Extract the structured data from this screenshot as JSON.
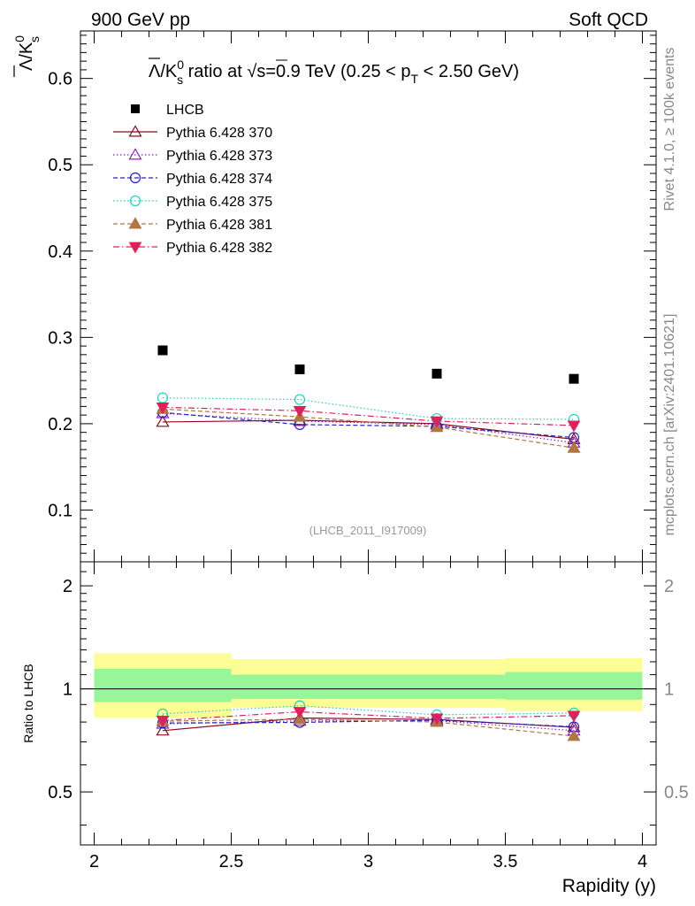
{
  "header": {
    "left": "900 GeV pp",
    "right": "Soft QCD"
  },
  "side_labels": {
    "rivet": "Rivet 4.1.0, ≥ 100k events",
    "mcplots": "mcplots.cern.ch [arXiv:2401.10621]"
  },
  "watermark": "(LHCB_2011_I917009)",
  "chart_data": [
    {
      "type": "scatter",
      "title": "Λ̄/K⁰s ratio at √s=0.9 TeV (0.25 < pT < 2.50 GeV)",
      "title_parts": {
        "ratio_label": "/K",
        "kaon_sup": "0",
        "kaon_sub": "s",
        "mid": " ratio at ",
        "sqrt_label": "s=0.9 TeV (0.25 < p",
        "pt_sub": "T",
        "tail": " < 2.50 GeV)"
      },
      "ylabel": "Λ̄/K⁰s",
      "ylabel_parts": {
        "slash_k": "/K",
        "sup": "0",
        "sub": "s"
      },
      "xlabel": "Rapidity (y)",
      "xlim": [
        1.95,
        4.05
      ],
      "ylim": [
        0.04,
        0.655
      ],
      "yticks": [
        0.1,
        0.2,
        0.3,
        0.4,
        0.5,
        0.6
      ],
      "ytick_labels": [
        "0.1",
        "0.2",
        "0.3",
        "0.4",
        "0.5",
        "0.6"
      ],
      "x": [
        2.25,
        2.75,
        3.25,
        3.75
      ],
      "legend_position": "top-left",
      "series": [
        {
          "name": "LHCB",
          "marker": "square",
          "color": "#000000",
          "values": [
            0.285,
            0.263,
            0.258,
            0.252
          ]
        },
        {
          "name": "Pythia 6.428 370",
          "marker": "triangle-open",
          "line": "solid",
          "color": "#8b0a1e",
          "values": [
            0.202,
            0.204,
            0.2,
            0.182
          ]
        },
        {
          "name": "Pythia 6.428 373",
          "marker": "triangle-open",
          "line": "dotted",
          "color": "#8b1fc8",
          "values": [
            0.212,
            0.203,
            0.199,
            0.178
          ]
        },
        {
          "name": "Pythia 6.428 374",
          "marker": "circle-open",
          "line": "dashed",
          "color": "#2020d0",
          "values": [
            0.213,
            0.199,
            0.197,
            0.184
          ]
        },
        {
          "name": "Pythia 6.428 375",
          "marker": "circle-open",
          "line": "dotted",
          "color": "#1ed2c0",
          "values": [
            0.23,
            0.228,
            0.206,
            0.205
          ]
        },
        {
          "name": "Pythia 6.428 381",
          "marker": "triangle-filled",
          "line": "dashed",
          "color": "#b07840",
          "values": [
            0.217,
            0.208,
            0.196,
            0.172
          ]
        },
        {
          "name": "Pythia 6.428 382",
          "marker": "triangle-down-filled",
          "line": "dashdot",
          "color": "#e0205a",
          "values": [
            0.219,
            0.215,
            0.203,
            0.198
          ]
        }
      ]
    },
    {
      "type": "scatter",
      "title": "",
      "ylabel": "Ratio to LHCB",
      "xlabel": "Rapidity (y)",
      "xlim": [
        1.95,
        4.05
      ],
      "ylim": [
        0.35,
        2.35
      ],
      "yscale": "log",
      "yticks": [
        0.5,
        1,
        2
      ],
      "ytick_labels": [
        "0.5",
        "1",
        "2"
      ],
      "xticks": [
        2,
        2.5,
        3,
        3.5,
        4
      ],
      "xtick_labels": [
        "2",
        "2.5",
        "3",
        "3.5",
        "4"
      ],
      "x": [
        2.25,
        2.75,
        3.25,
        3.75
      ],
      "bands": [
        {
          "x_range": [
            2.0,
            2.5
          ],
          "yellow": [
            0.825,
            1.27
          ],
          "green": [
            0.915,
            1.145
          ]
        },
        {
          "x_range": [
            2.5,
            3.0
          ],
          "yellow": [
            0.88,
            1.22
          ],
          "green": [
            0.935,
            1.1
          ]
        },
        {
          "x_range": [
            3.0,
            3.5
          ],
          "yellow": [
            0.88,
            1.22
          ],
          "green": [
            0.935,
            1.1
          ]
        },
        {
          "x_range": [
            3.5,
            4.0
          ],
          "yellow": [
            0.86,
            1.23
          ],
          "green": [
            0.93,
            1.12
          ]
        }
      ],
      "series": [
        {
          "name": "Pythia 6.428 370",
          "marker": "triangle-open",
          "line": "solid",
          "color": "#8b0a1e",
          "values": [
            0.755,
            0.822,
            0.814,
            0.772
          ]
        },
        {
          "name": "Pythia 6.428 373",
          "marker": "triangle-open",
          "line": "dotted",
          "color": "#8b1fc8",
          "values": [
            0.79,
            0.806,
            0.807,
            0.755
          ]
        },
        {
          "name": "Pythia 6.428 374",
          "marker": "circle-open",
          "line": "dashed",
          "color": "#2020d0",
          "values": [
            0.795,
            0.798,
            0.81,
            0.775
          ]
        },
        {
          "name": "Pythia 6.428 375",
          "marker": "circle-open",
          "line": "dotted",
          "color": "#1ed2c0",
          "values": [
            0.845,
            0.893,
            0.84,
            0.85
          ]
        },
        {
          "name": "Pythia 6.428 381",
          "marker": "triangle-filled",
          "line": "dashed",
          "color": "#b07840",
          "values": [
            0.805,
            0.815,
            0.8,
            0.728
          ]
        },
        {
          "name": "Pythia 6.428 382",
          "marker": "triangle-down-filled",
          "line": "dashdot",
          "color": "#e0205a",
          "values": [
            0.808,
            0.857,
            0.82,
            0.835
          ]
        }
      ]
    }
  ]
}
